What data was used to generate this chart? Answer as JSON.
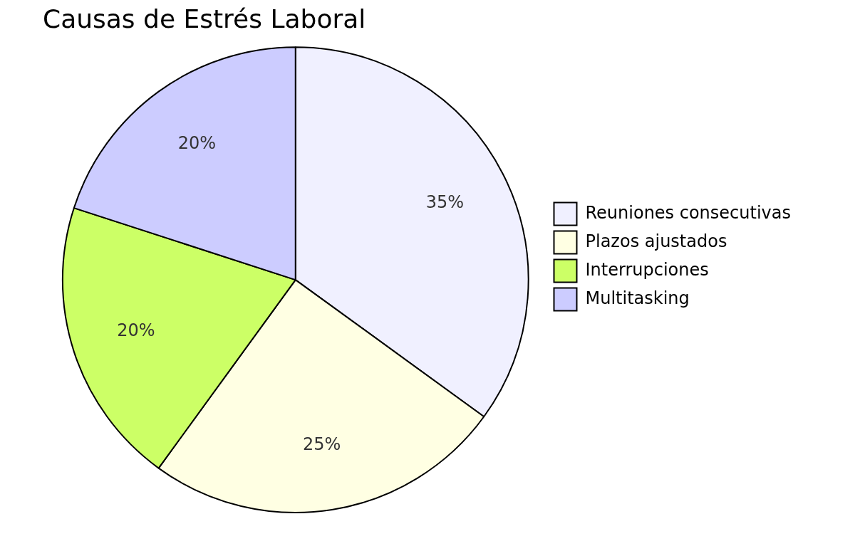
{
  "chart_data": {
    "type": "pie",
    "title": "Causas de Estrés Laboral",
    "categories": [
      "Reuniones consecutivas",
      "Plazos ajustados",
      "Interrupciones",
      "Multitasking"
    ],
    "values": [
      35,
      25,
      20,
      20
    ],
    "value_labels": [
      "35%",
      "25%",
      "20%",
      "20%"
    ],
    "colors": [
      "#f0f0ff",
      "#ffffe3",
      "#ccff66",
      "#ccccff"
    ],
    "legend": "right"
  }
}
